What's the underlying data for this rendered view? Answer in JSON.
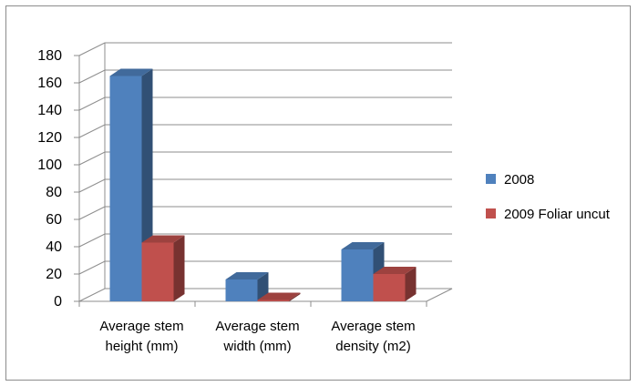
{
  "chart_data": {
    "type": "bar",
    "style": "3d-clustered-column",
    "categories": [
      [
        "Average stem",
        "height (mm)"
      ],
      [
        "Average stem",
        "width (mm)"
      ],
      [
        "Average stem",
        "density (m2)"
      ]
    ],
    "series": [
      {
        "name": "2008",
        "color": "#4f81bd",
        "values": [
          165,
          16,
          38
        ]
      },
      {
        "name": "2009 Foliar uncut",
        "color": "#c0504d",
        "values": [
          43,
          1,
          20
        ]
      }
    ],
    "ylim": [
      0,
      180
    ],
    "yticks": [
      "0",
      "20",
      "40",
      "60",
      "80",
      "100",
      "120",
      "140",
      "160",
      "180"
    ],
    "grid": true,
    "legend_position": "right"
  }
}
